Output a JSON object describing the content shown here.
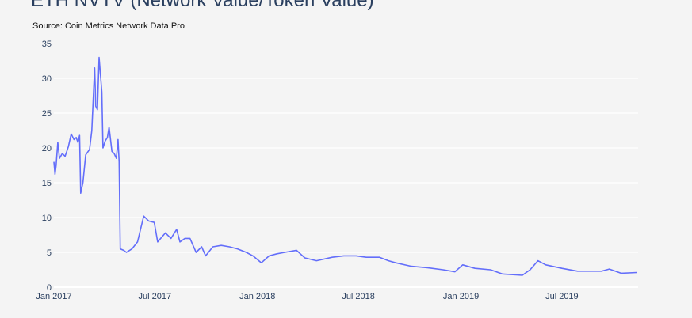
{
  "chart_data": {
    "type": "line",
    "title": "ETH NVTV (Network Value/Token Value)",
    "subtitle": "Source: Coin Metrics Network Data Pro",
    "xlabel": "",
    "ylabel": "",
    "ylim": [
      0,
      35
    ],
    "yticks": [
      0,
      5,
      10,
      15,
      20,
      25,
      30,
      35
    ],
    "xlim_days_since_2017_01_01": [
      0,
      1050
    ],
    "xticks": [
      {
        "label": "Jan 2017",
        "day": 0
      },
      {
        "label": "Jul 2017",
        "day": 181
      },
      {
        "label": "Jan 2018",
        "day": 365
      },
      {
        "label": "Jul 2018",
        "day": 546
      },
      {
        "label": "Jan 2019",
        "day": 730
      },
      {
        "label": "Jul 2019",
        "day": 911
      }
    ],
    "grid": true,
    "series": [
      {
        "name": "NVTV",
        "color": "#636efa",
        "x_days_since_2017_01_01": [
          0,
          2,
          4,
          7,
          10,
          15,
          20,
          26,
          31,
          36,
          40,
          43,
          46,
          48,
          52,
          57,
          64,
          68,
          73,
          75,
          78,
          81,
          86,
          88,
          92,
          96,
          99,
          104,
          108,
          112,
          115,
          117,
          119,
          125,
          130,
          140,
          150,
          161,
          170,
          180,
          186,
          200,
          210,
          220,
          226,
          235,
          244,
          255,
          265,
          272,
          285,
          300,
          315,
          329,
          345,
          357,
          372,
          386,
          400,
          414,
          435,
          450,
          471,
          499,
          520,
          542,
          560,
          584,
          600,
          613,
          641,
          670,
          698,
          719,
          733,
          755,
          783,
          804,
          840,
          854,
          868,
          882,
          911,
          939,
          982,
          996,
          1017,
          1045
        ],
        "values": [
          18,
          16.2,
          17.5,
          20.8,
          18.5,
          19.2,
          18.8,
          20.2,
          22,
          21.2,
          21.5,
          20.8,
          21.8,
          13.5,
          15,
          19,
          19.8,
          22.5,
          31.5,
          26,
          25.5,
          33,
          28,
          20,
          21,
          21.5,
          23,
          19.5,
          19.2,
          18.5,
          21.2,
          18,
          5.5,
          5.3,
          5,
          5.5,
          6.5,
          10.2,
          9.5,
          9.3,
          6.5,
          7.8,
          7,
          8.3,
          6.5,
          7,
          7,
          5,
          5.8,
          4.5,
          5.8,
          6,
          5.8,
          5.5,
          5,
          4.5,
          3.5,
          4.5,
          4.8,
          5,
          5.3,
          4.2,
          3.8,
          4.3,
          4.5,
          4.5,
          4.3,
          4.3,
          3.8,
          3.5,
          3,
          2.8,
          2.5,
          2.2,
          3.2,
          2.7,
          2.5,
          1.9,
          1.7,
          2.5,
          3.8,
          3.2,
          2.7,
          2.3,
          2.3,
          2.6,
          2,
          2.1
        ]
      }
    ]
  }
}
